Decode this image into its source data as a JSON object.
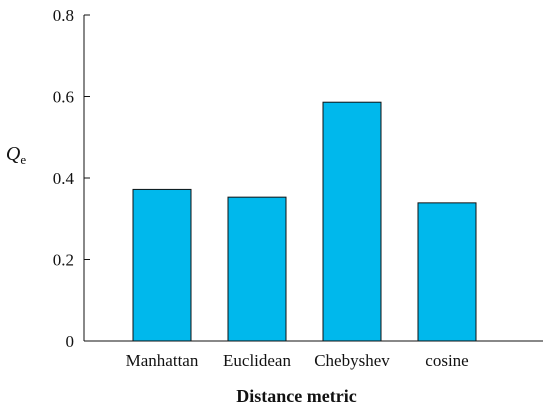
{
  "chart_data": {
    "type": "bar",
    "categories": [
      "Manhattan",
      "Euclidean",
      "Chebyshev",
      "cosine"
    ],
    "values": [
      0.372,
      0.353,
      0.586,
      0.339
    ],
    "title": "",
    "xlabel": "Distance metric",
    "ylabel": "Q",
    "ylabel_subscript": "e",
    "ylim": [
      0,
      0.8
    ],
    "yticks": [
      "0",
      "0.2",
      "0.4",
      "0.6",
      "0.8"
    ],
    "ytick_values": [
      0,
      0.2,
      0.4,
      0.6,
      0.8
    ],
    "grid": false,
    "legend": "none",
    "bar_color": "#00b8ec",
    "bar_edge_color": "#111111"
  }
}
